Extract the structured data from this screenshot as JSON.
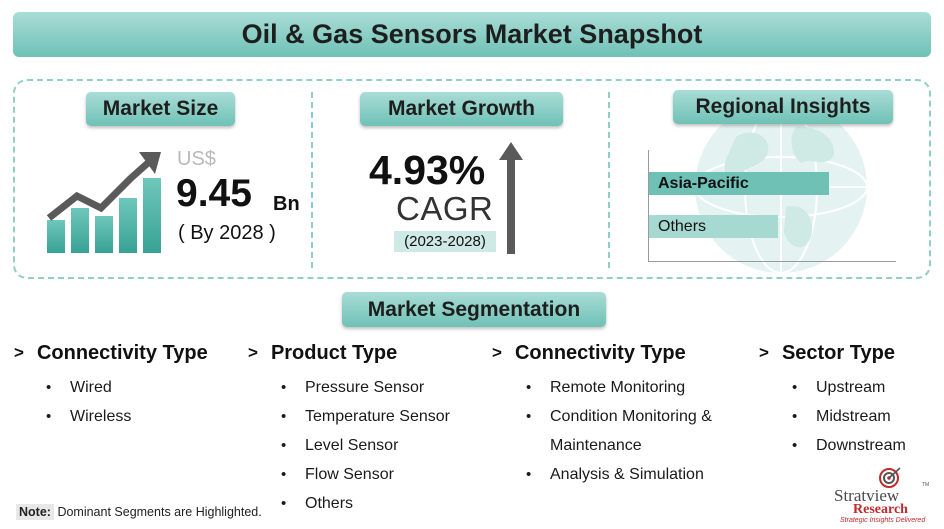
{
  "title": "Oil & Gas Sensors Market Snapshot",
  "market_size": {
    "heading": "Market Size",
    "currency": "US$",
    "value": "9.45",
    "unit": "Bn",
    "by_year": "( By 2028 )"
  },
  "market_growth": {
    "heading": "Market Growth",
    "value": "4.93%",
    "label": "CAGR",
    "period": "(2023-2028)"
  },
  "regional": {
    "heading": "Regional Insights",
    "bars": [
      {
        "label": "Asia-Pacific",
        "color": "#6fc1b6",
        "dominant": true
      },
      {
        "label": "Others",
        "color": "#a6d9d2",
        "dominant": false
      }
    ]
  },
  "segmentation": {
    "heading": "Market Segmentation",
    "columns": [
      {
        "title": "Connectivity Type",
        "items": [
          "Wired",
          "Wireless"
        ]
      },
      {
        "title": "Product Type",
        "items": [
          "Pressure Sensor",
          "Temperature Sensor",
          "Level Sensor",
          "Flow Sensor",
          "Others"
        ]
      },
      {
        "title": "Connectivity Type",
        "items": [
          "Remote Monitoring",
          "Condition Monitoring &",
          "Maintenance",
          "Analysis & Simulation"
        ]
      },
      {
        "title": "Sector Type",
        "items": [
          "Upstream",
          "Midstream",
          "Downstream"
        ]
      }
    ]
  },
  "note": {
    "label": "Note:",
    "text": "Dominant Segments are Highlighted."
  },
  "logo": {
    "brand": "Stratview",
    "tm": "TM",
    "sub": "Research",
    "tagline": "Strategic Insights Delivered"
  },
  "colors": {
    "accent": "#6fc1b6",
    "accent_light": "#a9ddd6",
    "border": "#8fcfc6",
    "arrow": "#5a5a5a"
  },
  "icons": {
    "growth_chart": "bar-chart-rising-arrow-icon",
    "growth_arrow": "up-arrow-icon",
    "globe": "globe-icon",
    "segment_marker": "chevron-right-icon"
  }
}
